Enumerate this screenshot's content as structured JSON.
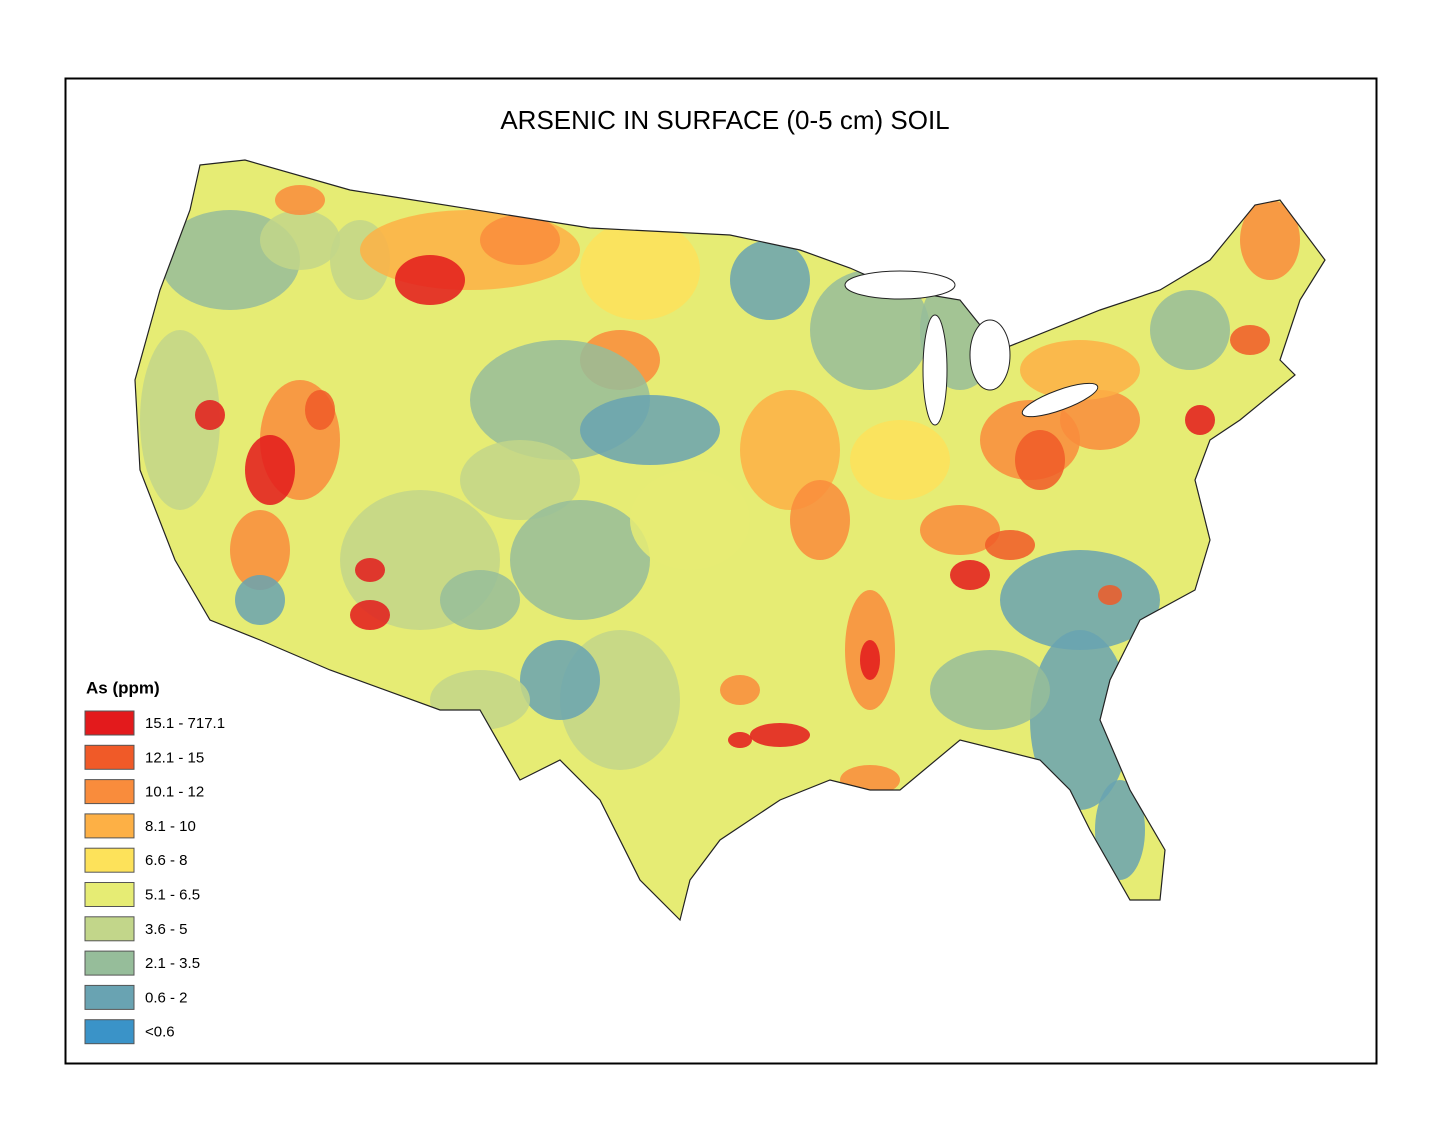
{
  "title": "ARSENIC IN SURFACE (0-5 cm) SOIL",
  "legend": {
    "title": "As (ppm)",
    "items": [
      {
        "label": "15.1 - 717.1",
        "color": "#e31a1c"
      },
      {
        "label": "12.1 - 15",
        "color": "#f05a28"
      },
      {
        "label": "10.1 - 12",
        "color": "#f98c3c"
      },
      {
        "label": "8.1 - 10",
        "color": "#fdb045"
      },
      {
        "label": "6.6 - 8",
        "color": "#fde25a"
      },
      {
        "label": "5.1 - 6.5",
        "color": "#e6ec74"
      },
      {
        "label": "3.6 - 5",
        "color": "#c2d68a"
      },
      {
        "label": "2.1 - 3.5",
        "color": "#96bd9a"
      },
      {
        "label": "0.6 - 2",
        "color": "#69a3b2"
      },
      {
        "label": "<0.6",
        "color": "#3a93c8"
      }
    ]
  }
}
